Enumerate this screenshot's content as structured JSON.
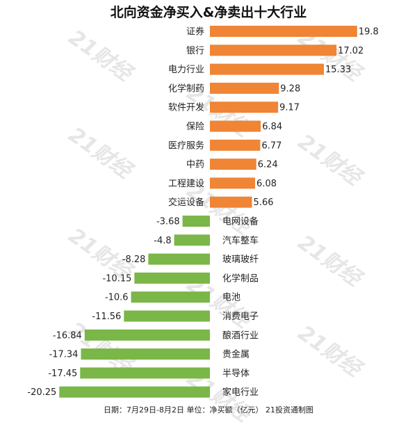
{
  "title": "北向资金净买入&净卖出十大行业",
  "footer": "日期：7月29日-8月2日 单位：净买额（亿元） 21投资通制图",
  "watermark": "21财经",
  "colors": {
    "positive": "#ef8535",
    "negative": "#7ab648"
  },
  "chart_data": {
    "type": "bar",
    "orientation": "horizontal",
    "title": "北向资金净买入&净卖出十大行业",
    "unit": "亿元",
    "categories": [
      "证券",
      "银行",
      "电力行业",
      "化学制药",
      "软件开发",
      "保险",
      "医疗服务",
      "中药",
      "工程建设",
      "交运设备",
      "电网设备",
      "汽车整车",
      "玻璃玻纤",
      "化学制品",
      "电池",
      "消费电子",
      "酿酒行业",
      "贵金属",
      "半导体",
      "家电行业"
    ],
    "values": [
      19.8,
      17.02,
      15.33,
      9.28,
      9.17,
      6.84,
      6.77,
      6.24,
      6.08,
      5.66,
      -3.68,
      -4.8,
      -8.28,
      -10.15,
      -10.6,
      -11.56,
      -16.84,
      -17.34,
      -17.45,
      -20.25
    ],
    "labels": [
      "19.8",
      "17.02",
      "15.33",
      "9.28",
      "9.17",
      "6.84",
      "6.77",
      "6.24",
      "6.08",
      "5.66",
      "-3.68",
      "-4.8",
      "-8.28",
      "-10.15",
      "-10.6",
      "-11.56",
      "-16.84",
      "-17.34",
      "-17.45",
      "-20.25"
    ]
  }
}
